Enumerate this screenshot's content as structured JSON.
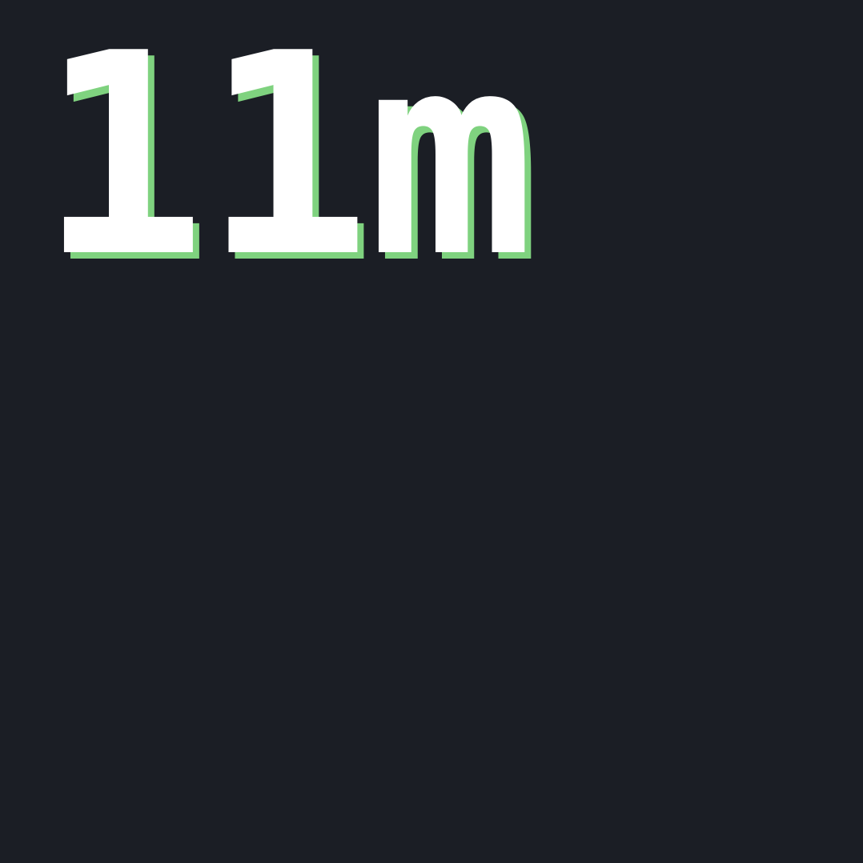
{
  "display": {
    "text": "11m",
    "text_color": "#ffffff",
    "shadow_color": "#7fd27f",
    "background_color": "#1b1e25"
  }
}
